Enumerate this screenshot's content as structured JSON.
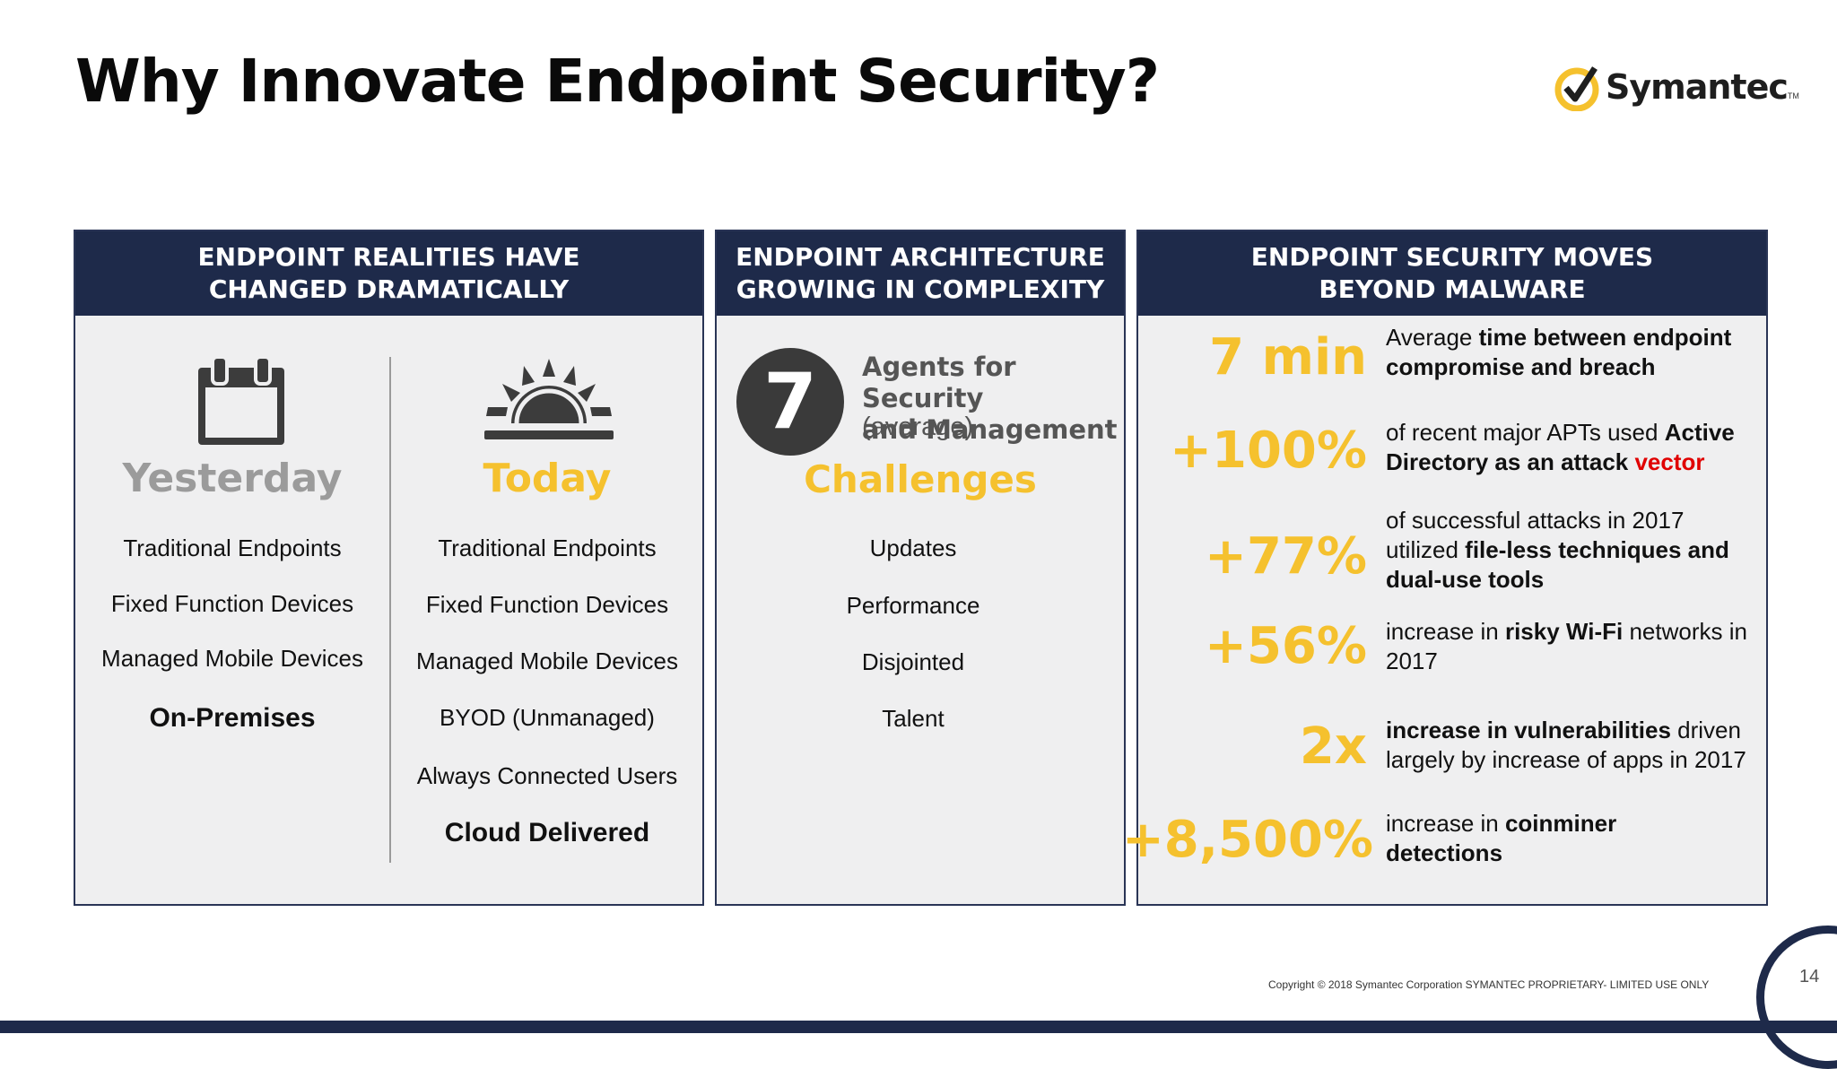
{
  "slide": {
    "title": "Why Innovate Endpoint Security?",
    "logo": {
      "text": "Symantec",
      "tm": "TM"
    },
    "footer": {
      "copyright": "Copyright © 2018 Symantec Corporation SYMANTEC PROPRIETARY- LIMITED USE ONLY",
      "page_number": "14"
    }
  },
  "colors": {
    "navy": "#1e2a4a",
    "gold": "#f5c12e",
    "panel_bg": "#efeff0",
    "red": "#e00000"
  },
  "panel_realities": {
    "header": "ENDPOINT REALITIES HAVE\nCHANGED DRAMATICALLY",
    "yesterday": {
      "icon": "calendar-icon",
      "label": "Yesterday",
      "items": [
        "Traditional Endpoints",
        "Fixed Function Devices",
        "Managed Mobile Devices"
      ],
      "emphasis": "On-Premises"
    },
    "today": {
      "icon": "sunrise-icon",
      "label": "Today",
      "items": [
        "Traditional Endpoints",
        "Fixed Function Devices",
        "Managed Mobile Devices",
        "BYOD (Unmanaged)",
        "Always Connected Users"
      ],
      "emphasis": "Cloud Delivered"
    }
  },
  "panel_architecture": {
    "header": "ENDPOINT ARCHITECTURE\nGROWING IN COMPLEXITY",
    "number": "7",
    "agents_label": "Agents for Security\nand Management",
    "agents_sub": "(average)",
    "challenges_title": "Challenges",
    "challenges": [
      "Updates",
      "Performance",
      "Disjointed",
      "Talent"
    ]
  },
  "panel_malware": {
    "header": "ENDPOINT SECURITY MOVES\nBEYOND MALWARE",
    "stats": [
      {
        "value": "7 min",
        "pre": "Average ",
        "bold": "time between endpoint compromise and breach",
        "post": "",
        "red": ""
      },
      {
        "value": "+100%",
        "pre": "of recent major APTs used ",
        "bold": "Active Directory as an attack ",
        "post": "",
        "red": "vector"
      },
      {
        "value": "+77%",
        "pre": "of successful attacks in 2017 utilized ",
        "bold": "file-less techniques and dual-use tools",
        "post": "",
        "red": ""
      },
      {
        "value": "+56%",
        "pre": "increase in ",
        "bold": "risky Wi-Fi",
        "post": " networks in 2017",
        "red": ""
      },
      {
        "value": "2x",
        "pre": "",
        "bold": "increase in vulnerabilities",
        "post": " driven largely by increase of apps in 2017",
        "red": ""
      },
      {
        "value": "+8,500%",
        "pre": "increase in ",
        "bold": "coinminer detections",
        "post": "",
        "red": ""
      }
    ]
  }
}
